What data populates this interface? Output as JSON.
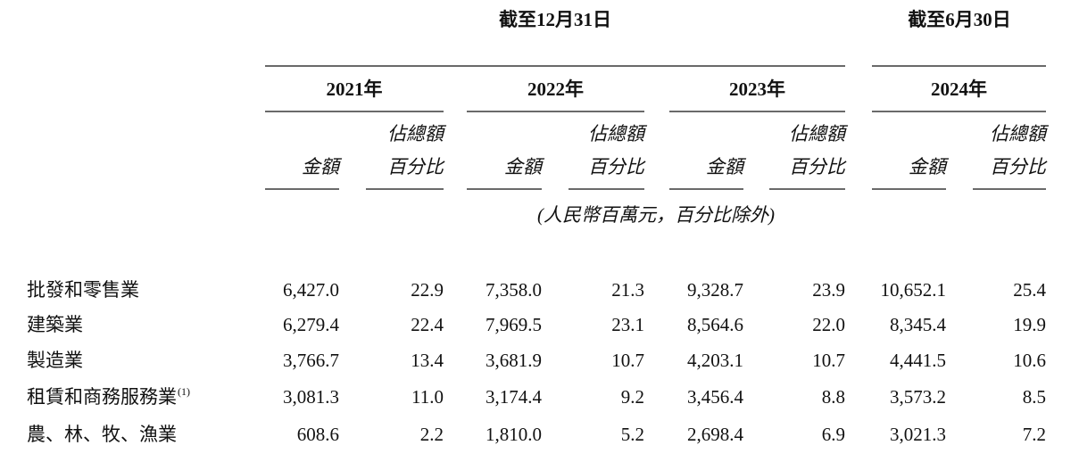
{
  "header": {
    "period_1": "截至12月31日",
    "period_2": "截至6月30日",
    "years": [
      "2021年",
      "2022年",
      "2023年",
      "2024年"
    ],
    "amount": "金額",
    "pct_line1": "佔總額",
    "pct_line2": "百分比",
    "unit_note": "(人民幣百萬元，百分比除外)"
  },
  "table": {
    "rows": [
      {
        "label": "批發和零售業",
        "values": [
          "6,427.0",
          "22.9",
          "7,358.0",
          "21.3",
          "9,328.7",
          "23.9",
          "10,652.1",
          "25.4"
        ]
      },
      {
        "label": "建築業",
        "values": [
          "6,279.4",
          "22.4",
          "7,969.5",
          "23.1",
          "8,564.6",
          "22.0",
          "8,345.4",
          "19.9"
        ]
      },
      {
        "label": "製造業",
        "values": [
          "3,766.7",
          "13.4",
          "3,681.9",
          "10.7",
          "4,203.1",
          "10.7",
          "4,441.5",
          "10.6"
        ]
      },
      {
        "label": "租賃和商務服務業",
        "note": "(1)",
        "values": [
          "3,081.3",
          "11.0",
          "3,174.4",
          "9.2",
          "3,456.4",
          "8.8",
          "3,573.2",
          "8.5"
        ]
      },
      {
        "label": "農、林、牧、漁業",
        "values": [
          "608.6",
          "2.2",
          "1,810.0",
          "5.2",
          "2,698.4",
          "6.9",
          "3,021.3",
          "7.2"
        ]
      }
    ]
  }
}
